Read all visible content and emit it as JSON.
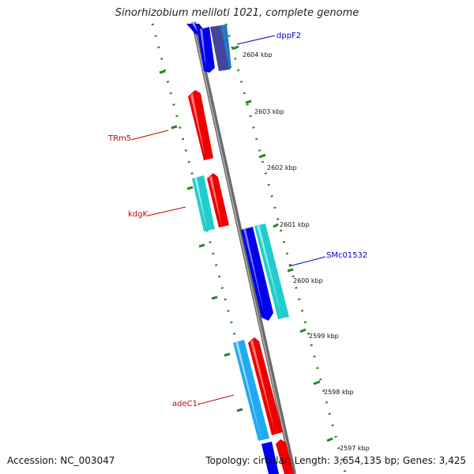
{
  "title": "Sinorhizobium meliloti 1021, complete genome",
  "footer": {
    "accession": "Accession: NC_003047",
    "summary": "Topology: circular; Length: 3,654,135 bp; Genes: 3,425"
  },
  "scale_ticks": [
    {
      "label": "2604 kbp"
    },
    {
      "label": "2603 kbp"
    },
    {
      "label": "2602 kbp"
    },
    {
      "label": "2601 kbp"
    },
    {
      "label": "2600 kbp"
    },
    {
      "label": "2599 kbp"
    },
    {
      "label": "2598 kbp"
    },
    {
      "label": "2597 kbp"
    }
  ],
  "gene_labels": [
    {
      "name": "dppF2",
      "color": "#0000cc"
    },
    {
      "name": "TRm5",
      "color": "#cc0000"
    },
    {
      "name": "kdgK",
      "color": "#cc0000"
    },
    {
      "name": "SMc01532",
      "color": "#0000cc"
    },
    {
      "name": "adeC1",
      "color": "#cc0000"
    }
  ],
  "colors": {
    "backbone": "#888888",
    "forward_gene": "#0000ee",
    "reverse_gene": "#ee0000",
    "cyan_gene": "#22cccc",
    "sky_gene": "#22aaee",
    "tick": "#228822"
  }
}
